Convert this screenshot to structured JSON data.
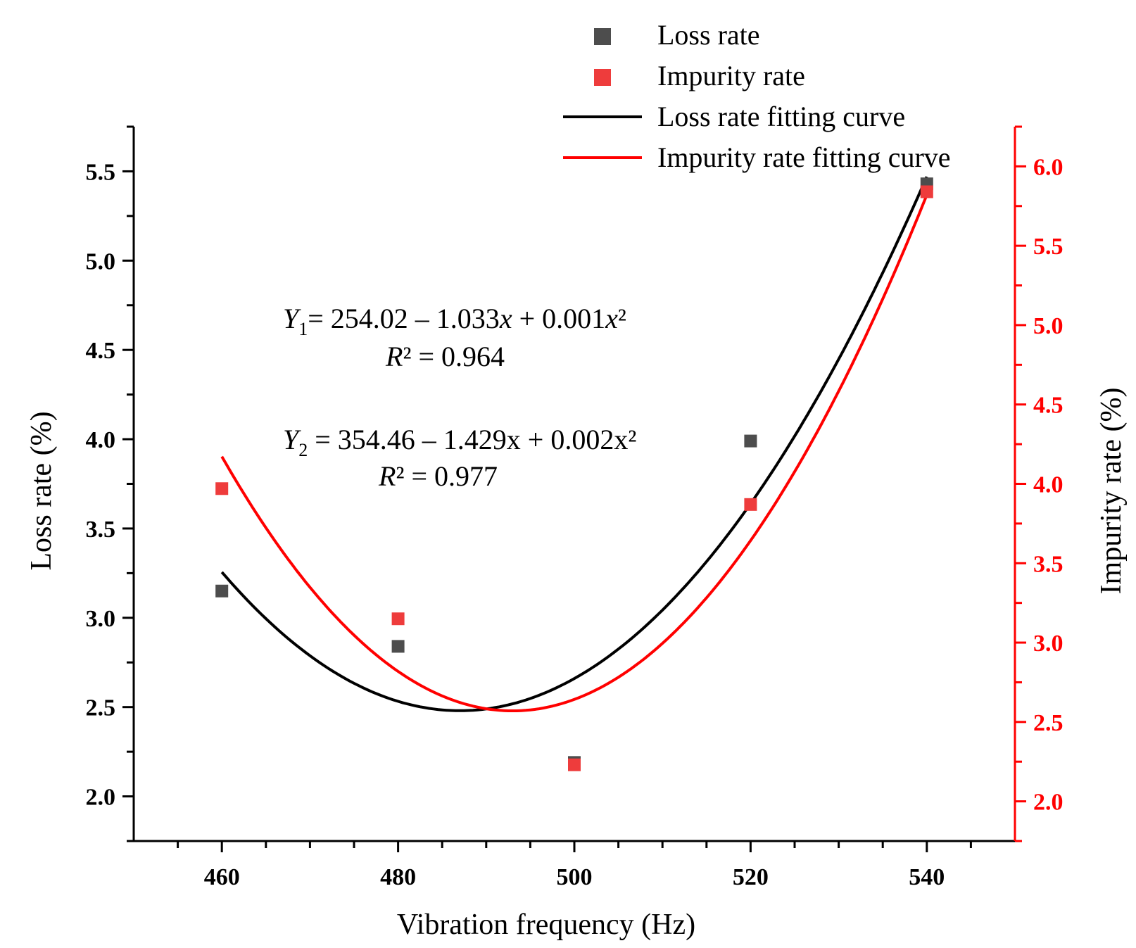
{
  "chart_data": {
    "type": "scatter",
    "x": [
      460,
      480,
      500,
      520,
      540
    ],
    "xlabel": "Vibration frequency (Hz)",
    "xlim": [
      450,
      550
    ],
    "xticks": [
      "460",
      "480",
      "500",
      "520",
      "540"
    ],
    "ylabel_left": "Loss rate (%)",
    "ylim_left": [
      1.75,
      5.75
    ],
    "yticks_left": [
      "2.0",
      "2.5",
      "3.0",
      "3.5",
      "4.0",
      "4.5",
      "5.0",
      "5.5"
    ],
    "ylabel_right": "Impurity rate (%)",
    "ylim_right": [
      1.75,
      6.25
    ],
    "yticks_right": [
      "2.0",
      "2.5",
      "3.0",
      "3.5",
      "4.0",
      "4.5",
      "5.0",
      "5.5",
      "6.0"
    ],
    "grid": false,
    "legend_position": "top-right",
    "series": [
      {
        "name": "Loss rate",
        "axis": "left",
        "color": "#4d4d4d",
        "marker": "square",
        "values": [
          3.15,
          2.84,
          2.19,
          3.99,
          5.43
        ]
      },
      {
        "name": "Impurity rate",
        "axis": "right",
        "color": "#ee3c3c",
        "marker": "square",
        "values": [
          3.97,
          3.15,
          2.23,
          3.87,
          5.84
        ]
      },
      {
        "name": "Loss rate fitting curve",
        "axis": "left",
        "color": "#000000",
        "line": true,
        "fit": [
          254.02,
          -1.033,
          0.001
        ],
        "x_range": [
          460,
          540
        ]
      },
      {
        "name": "Impurity rate fitting curve",
        "axis": "right",
        "color": "#ff0000",
        "line": true,
        "fit": [
          354.46,
          -1.429,
          0.002
        ],
        "x_range": [
          460,
          540
        ]
      }
    ],
    "annotations": {
      "eq1": {
        "Y": "Y",
        "sub": "1",
        "mid": "= 254.02 – 1.033",
        "x1": "x",
        "plus": " + 0.001",
        "x2": "x",
        "sq": "²"
      },
      "r1": {
        "R": "R",
        "sq": "²",
        "rest": " = 0.964"
      },
      "eq2": {
        "Y": "Y",
        "sub": "2",
        "rest": " = 354.46 – 1.429x + 0.002x²"
      },
      "r2": {
        "R": "R",
        "sq": "²",
        "rest": " = 0.977"
      }
    }
  }
}
